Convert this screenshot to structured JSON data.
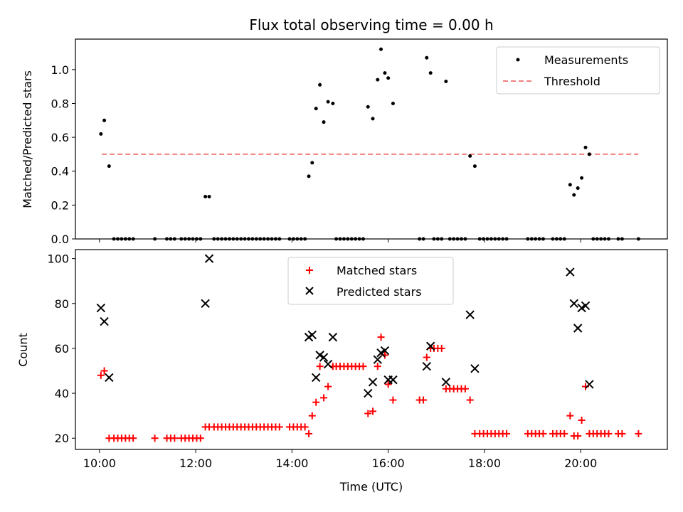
{
  "chart_data": [
    {
      "type": "scatter",
      "title": "Flux total observing time = 0.00 h",
      "ylabel": "Matched/Predicted stars",
      "xlabel": "",
      "xlim": [
        9.5,
        21.8
      ],
      "ylim": [
        0,
        1.18
      ],
      "yticks": [
        0.0,
        0.2,
        0.4,
        0.6,
        0.8,
        1.0
      ],
      "ytick_labels": [
        "0.0",
        "0.2",
        "0.4",
        "0.6",
        "0.8",
        "1.0"
      ],
      "legend": "top-right",
      "threshold": {
        "name": "Threshold",
        "value": 0.5,
        "x_range": [
          10.05,
          21.2
        ],
        "color": "#f08080"
      },
      "series": [
        {
          "name": "Measurements",
          "color": "#000000",
          "marker": "dot",
          "points": [
            [
              10.03,
              0.62
            ],
            [
              10.1,
              0.7
            ],
            [
              10.2,
              0.43
            ],
            [
              10.3,
              0
            ],
            [
              10.38,
              0
            ],
            [
              10.46,
              0
            ],
            [
              10.54,
              0
            ],
            [
              10.62,
              0
            ],
            [
              10.7,
              0
            ],
            [
              11.15,
              0
            ],
            [
              11.4,
              0
            ],
            [
              11.48,
              0
            ],
            [
              11.56,
              0
            ],
            [
              11.7,
              0
            ],
            [
              11.78,
              0
            ],
            [
              11.86,
              0
            ],
            [
              11.94,
              0
            ],
            [
              12.02,
              0
            ],
            [
              12.1,
              0
            ],
            [
              12.2,
              0.25
            ],
            [
              12.28,
              0.25
            ],
            [
              12.38,
              0
            ],
            [
              12.46,
              0
            ],
            [
              12.54,
              0
            ],
            [
              12.62,
              0
            ],
            [
              12.7,
              0
            ],
            [
              12.78,
              0
            ],
            [
              12.86,
              0
            ],
            [
              12.94,
              0
            ],
            [
              13.02,
              0
            ],
            [
              13.1,
              0
            ],
            [
              13.18,
              0
            ],
            [
              13.26,
              0
            ],
            [
              13.34,
              0
            ],
            [
              13.42,
              0
            ],
            [
              13.5,
              0
            ],
            [
              13.58,
              0
            ],
            [
              13.66,
              0
            ],
            [
              13.74,
              0
            ],
            [
              13.95,
              0
            ],
            [
              14.03,
              0
            ],
            [
              14.11,
              0
            ],
            [
              14.19,
              0
            ],
            [
              14.27,
              0
            ],
            [
              14.35,
              0.37
            ],
            [
              14.42,
              0.45
            ],
            [
              14.5,
              0.77
            ],
            [
              14.58,
              0.91
            ],
            [
              14.66,
              0.69
            ],
            [
              14.75,
              0.81
            ],
            [
              14.85,
              0.8
            ],
            [
              14.92,
              0
            ],
            [
              15.0,
              0
            ],
            [
              15.08,
              0
            ],
            [
              15.16,
              0
            ],
            [
              15.24,
              0
            ],
            [
              15.32,
              0
            ],
            [
              15.4,
              0
            ],
            [
              15.48,
              0
            ],
            [
              15.58,
              0.78
            ],
            [
              15.68,
              0.71
            ],
            [
              15.78,
              0.94
            ],
            [
              15.85,
              1.12
            ],
            [
              15.93,
              0.98
            ],
            [
              16.0,
              0.95
            ],
            [
              16.1,
              0.8
            ],
            [
              16.65,
              0
            ],
            [
              16.73,
              0
            ],
            [
              16.8,
              1.07
            ],
            [
              16.88,
              0.98
            ],
            [
              16.95,
              0
            ],
            [
              17.03,
              0
            ],
            [
              17.11,
              0
            ],
            [
              17.2,
              0.93
            ],
            [
              17.28,
              0
            ],
            [
              17.36,
              0
            ],
            [
              17.44,
              0
            ],
            [
              17.52,
              0
            ],
            [
              17.6,
              0
            ],
            [
              17.7,
              0.49
            ],
            [
              17.8,
              0.43
            ],
            [
              17.9,
              0
            ],
            [
              17.98,
              0
            ],
            [
              18.06,
              0
            ],
            [
              18.14,
              0
            ],
            [
              18.22,
              0
            ],
            [
              18.3,
              0
            ],
            [
              18.38,
              0
            ],
            [
              18.46,
              0
            ],
            [
              18.9,
              0
            ],
            [
              18.98,
              0
            ],
            [
              19.06,
              0
            ],
            [
              19.14,
              0
            ],
            [
              19.22,
              0
            ],
            [
              19.42,
              0
            ],
            [
              19.5,
              0
            ],
            [
              19.58,
              0
            ],
            [
              19.66,
              0
            ],
            [
              19.78,
              0.32
            ],
            [
              19.86,
              0.26
            ],
            [
              19.94,
              0.3
            ],
            [
              20.02,
              0.36
            ],
            [
              20.1,
              0.54
            ],
            [
              20.18,
              0.5
            ],
            [
              20.26,
              0
            ],
            [
              20.34,
              0
            ],
            [
              20.42,
              0
            ],
            [
              20.5,
              0
            ],
            [
              20.58,
              0
            ],
            [
              20.78,
              0
            ],
            [
              20.86,
              0
            ],
            [
              21.2,
              0
            ]
          ]
        }
      ]
    },
    {
      "type": "scatter",
      "title": "",
      "ylabel": "Count",
      "xlabel": "Time (UTC)",
      "xlim": [
        9.5,
        21.8
      ],
      "ylim": [
        15,
        104
      ],
      "xticks": [
        10,
        12,
        14,
        16,
        18,
        20
      ],
      "xtick_labels": [
        "10:00",
        "12:00",
        "14:00",
        "16:00",
        "18:00",
        "20:00"
      ],
      "yticks": [
        20,
        40,
        60,
        80,
        100
      ],
      "ytick_labels": [
        "20",
        "40",
        "60",
        "80",
        "100"
      ],
      "legend": "top-center",
      "series": [
        {
          "name": "Matched stars",
          "color": "#ff0000",
          "marker": "plus",
          "points": [
            [
              10.03,
              48
            ],
            [
              10.1,
              50
            ],
            [
              10.2,
              20
            ],
            [
              10.3,
              20
            ],
            [
              10.38,
              20
            ],
            [
              10.46,
              20
            ],
            [
              10.54,
              20
            ],
            [
              10.62,
              20
            ],
            [
              10.7,
              20
            ],
            [
              11.15,
              20
            ],
            [
              11.4,
              20
            ],
            [
              11.48,
              20
            ],
            [
              11.56,
              20
            ],
            [
              11.7,
              20
            ],
            [
              11.78,
              20
            ],
            [
              11.86,
              20
            ],
            [
              11.94,
              20
            ],
            [
              12.02,
              20
            ],
            [
              12.1,
              20
            ],
            [
              12.2,
              25
            ],
            [
              12.28,
              25
            ],
            [
              12.38,
              25
            ],
            [
              12.46,
              25
            ],
            [
              12.54,
              25
            ],
            [
              12.62,
              25
            ],
            [
              12.7,
              25
            ],
            [
              12.78,
              25
            ],
            [
              12.86,
              25
            ],
            [
              12.94,
              25
            ],
            [
              13.02,
              25
            ],
            [
              13.1,
              25
            ],
            [
              13.18,
              25
            ],
            [
              13.26,
              25
            ],
            [
              13.34,
              25
            ],
            [
              13.42,
              25
            ],
            [
              13.5,
              25
            ],
            [
              13.58,
              25
            ],
            [
              13.66,
              25
            ],
            [
              13.74,
              25
            ],
            [
              13.95,
              25
            ],
            [
              14.03,
              25
            ],
            [
              14.11,
              25
            ],
            [
              14.19,
              25
            ],
            [
              14.27,
              25
            ],
            [
              14.35,
              22
            ],
            [
              14.42,
              30
            ],
            [
              14.5,
              36
            ],
            [
              14.58,
              52
            ],
            [
              14.66,
              38
            ],
            [
              14.75,
              43
            ],
            [
              14.85,
              52
            ],
            [
              14.92,
              52
            ],
            [
              15.0,
              52
            ],
            [
              15.08,
              52
            ],
            [
              15.16,
              52
            ],
            [
              15.24,
              52
            ],
            [
              15.32,
              52
            ],
            [
              15.4,
              52
            ],
            [
              15.48,
              52
            ],
            [
              15.58,
              31
            ],
            [
              15.68,
              32
            ],
            [
              15.78,
              52
            ],
            [
              15.85,
              65
            ],
            [
              15.93,
              57
            ],
            [
              16.0,
              44
            ],
            [
              16.1,
              37
            ],
            [
              16.65,
              37
            ],
            [
              16.73,
              37
            ],
            [
              16.8,
              56
            ],
            [
              16.88,
              60
            ],
            [
              16.95,
              60
            ],
            [
              17.03,
              60
            ],
            [
              17.11,
              60
            ],
            [
              17.2,
              42
            ],
            [
              17.28,
              42
            ],
            [
              17.36,
              42
            ],
            [
              17.44,
              42
            ],
            [
              17.52,
              42
            ],
            [
              17.6,
              42
            ],
            [
              17.7,
              37
            ],
            [
              17.8,
              22
            ],
            [
              17.9,
              22
            ],
            [
              17.98,
              22
            ],
            [
              18.06,
              22
            ],
            [
              18.14,
              22
            ],
            [
              18.22,
              22
            ],
            [
              18.3,
              22
            ],
            [
              18.38,
              22
            ],
            [
              18.46,
              22
            ],
            [
              18.9,
              22
            ],
            [
              18.98,
              22
            ],
            [
              19.06,
              22
            ],
            [
              19.14,
              22
            ],
            [
              19.22,
              22
            ],
            [
              19.42,
              22
            ],
            [
              19.5,
              22
            ],
            [
              19.58,
              22
            ],
            [
              19.66,
              22
            ],
            [
              19.78,
              30
            ],
            [
              19.86,
              21
            ],
            [
              19.94,
              21
            ],
            [
              20.02,
              28
            ],
            [
              20.1,
              43
            ],
            [
              20.18,
              22
            ],
            [
              20.26,
              22
            ],
            [
              20.34,
              22
            ],
            [
              20.42,
              22
            ],
            [
              20.5,
              22
            ],
            [
              20.58,
              22
            ],
            [
              20.78,
              22
            ],
            [
              20.86,
              22
            ],
            [
              21.2,
              22
            ]
          ]
        },
        {
          "name": "Predicted stars",
          "color": "#000000",
          "marker": "x",
          "points": [
            [
              10.03,
              78
            ],
            [
              10.1,
              72
            ],
            [
              10.2,
              47
            ],
            [
              12.2,
              80
            ],
            [
              12.28,
              100
            ],
            [
              14.35,
              65
            ],
            [
              14.42,
              66
            ],
            [
              14.5,
              47
            ],
            [
              14.58,
              57
            ],
            [
              14.66,
              56
            ],
            [
              14.75,
              53
            ],
            [
              14.85,
              65
            ],
            [
              15.58,
              40
            ],
            [
              15.68,
              45
            ],
            [
              15.78,
              55
            ],
            [
              15.85,
              58
            ],
            [
              15.93,
              59
            ],
            [
              16.0,
              46
            ],
            [
              16.1,
              46
            ],
            [
              16.8,
              52
            ],
            [
              16.88,
              61
            ],
            [
              17.2,
              45
            ],
            [
              17.7,
              75
            ],
            [
              17.8,
              51
            ],
            [
              19.78,
              94
            ],
            [
              19.86,
              80
            ],
            [
              19.94,
              69
            ],
            [
              20.02,
              78
            ],
            [
              20.1,
              79
            ],
            [
              20.18,
              44
            ]
          ]
        }
      ]
    }
  ]
}
